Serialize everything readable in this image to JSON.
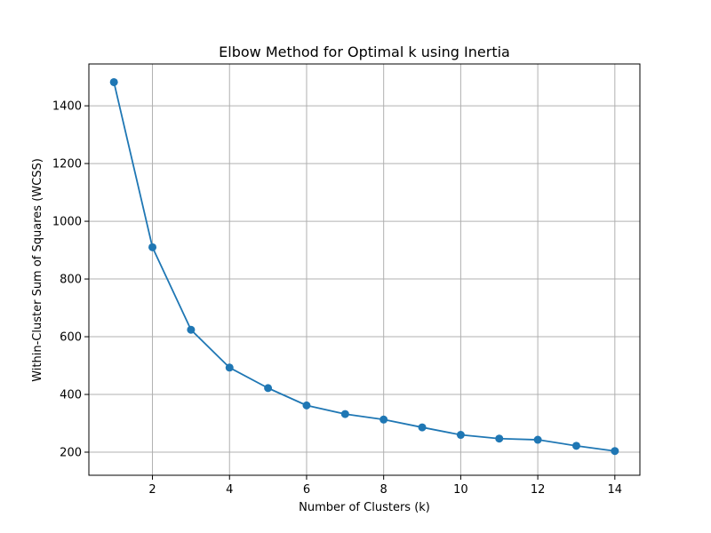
{
  "colors": {
    "series": "#1f77b4",
    "grid": "#b0b0b0",
    "axis": "#000000",
    "background": "#ffffff"
  },
  "chart_data": {
    "type": "line",
    "title": "Elbow Method for Optimal k using Inertia",
    "xlabel": "Number of Clusters (k)",
    "ylabel": "Within-Cluster Sum of Squares (WCSS)",
    "xlim": [
      0.35,
      14.65
    ],
    "ylim": [
      120,
      1545
    ],
    "grid": true,
    "marker": "circle",
    "x_ticks": [
      2,
      4,
      6,
      8,
      10,
      12,
      14
    ],
    "y_ticks": [
      200,
      400,
      600,
      800,
      1000,
      1200,
      1400
    ],
    "series": [
      {
        "x": [
          1,
          2,
          3,
          4,
          5,
          6,
          7,
          8,
          9,
          10,
          11,
          12,
          13,
          14
        ],
        "y": [
          1482,
          910,
          624,
          493,
          422,
          362,
          332,
          313,
          286,
          260,
          247,
          243,
          222,
          204
        ]
      }
    ]
  }
}
